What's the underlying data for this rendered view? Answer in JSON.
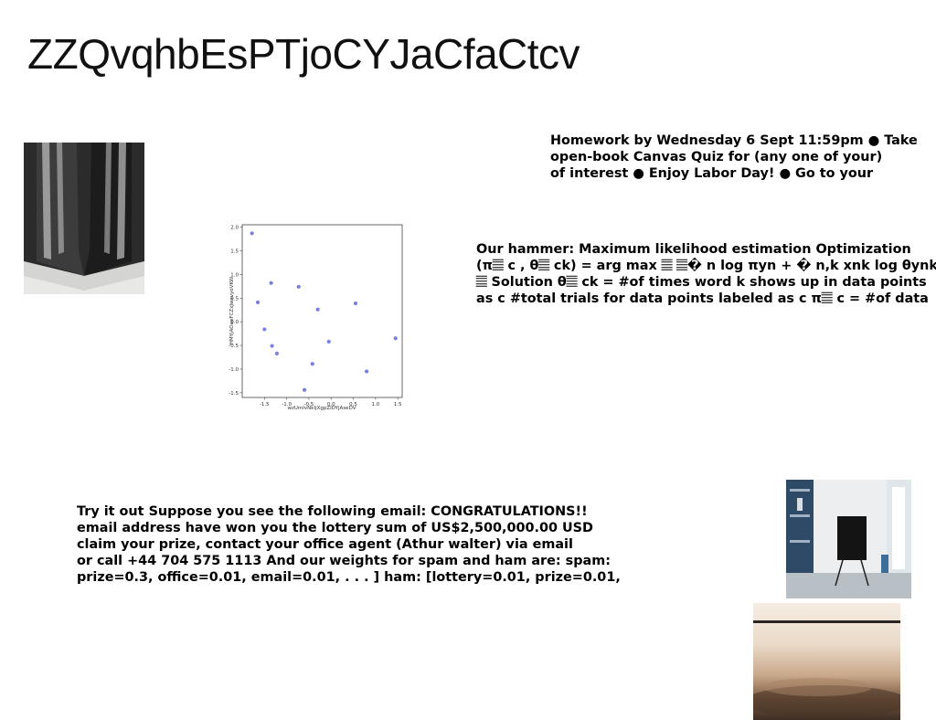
{
  "title": "ZZQvqhbEsPTjoCYJaCfaCtcv",
  "homework": {
    "lines": [
      "Homework by Wednesday 6 Sept 11:59pm ● Take",
      "open-book Canvas Quiz for (any one of your)",
      "of interest ● Enjoy Labor Day! ● Go to your"
    ]
  },
  "mle": {
    "lines": [
      "Our hammer: Maximum likelihood estimation Optimization",
      "(π𝄚 c , θ𝄚 ck) = arg max 𝄚 𝄚� n log πyn + � n,k xnk log θynk",
      "𝄚 Solution θ𝄚 ck = #of times word k shows up in data points",
      "as c #total trials for data points labeled as c π𝄚 c = #of data"
    ]
  },
  "spam": {
    "lines": [
      "Try it out Suppose you see the following email: CONGRATULATIONS!!",
      "email address have won you the lottery sum of US$2,500,000.00 USD",
      "claim your prize, contact your office agent (Athur walter) via email",
      "or call +44 704 575 1113 And our weights for spam and ham are: spam:",
      "prize=0.3, office=0.01, email=0.01, . . . ] ham: [lottery=0.01, prize=0.01,"
    ]
  },
  "chart_data": {
    "type": "scatter",
    "xlabel": "wzUmIvNkIjXgpZIDYjAseDV",
    "ylabel": "HMYjAOaeFCZxJwxvyoVKW",
    "xlim": [
      -2.0,
      1.6
    ],
    "ylim": [
      -1.6,
      2.05
    ],
    "xticks": [
      "-1.5",
      "-1.0",
      "-0.5",
      "0.0",
      "0.5",
      "1.0",
      "1.5"
    ],
    "xtick_values": [
      -1.5,
      -1.0,
      -0.5,
      0.0,
      0.5,
      1.0,
      1.5
    ],
    "yticks": [
      "2.0",
      "1.5",
      "1.0",
      "0.5",
      "0.0",
      "-0.5",
      "-1.0",
      "-1.5"
    ],
    "ytick_values": [
      2.0,
      1.5,
      1.0,
      0.5,
      0.0,
      -0.5,
      -1.0,
      -1.5
    ],
    "points": [
      {
        "x": -1.78,
        "y": 1.87
      },
      {
        "x": -1.65,
        "y": 0.41
      },
      {
        "x": -1.5,
        "y": -0.16
      },
      {
        "x": -1.35,
        "y": 0.82
      },
      {
        "x": -1.33,
        "y": -0.51
      },
      {
        "x": -1.22,
        "y": -0.67
      },
      {
        "x": -0.73,
        "y": 0.74
      },
      {
        "x": -0.6,
        "y": -1.44
      },
      {
        "x": -0.42,
        "y": -0.89
      },
      {
        "x": -0.3,
        "y": 0.26
      },
      {
        "x": -0.05,
        "y": -0.42
      },
      {
        "x": 0.55,
        "y": 0.39
      },
      {
        "x": 0.8,
        "y": -1.05
      },
      {
        "x": 1.45,
        "y": -0.35
      }
    ],
    "point_color": "#7b7fe0",
    "grid": false
  }
}
